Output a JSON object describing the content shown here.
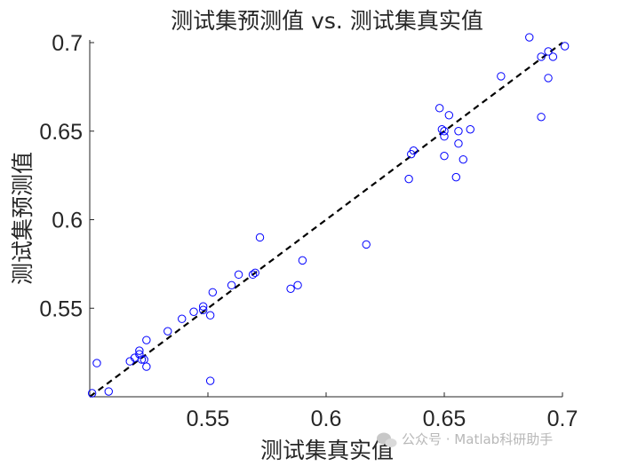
{
  "chart_data": {
    "type": "scatter",
    "title": "测试集预测值 vs. 测试集真实值",
    "xlabel": "测试集真实值",
    "ylabel": "测试集预测值",
    "xlim": [
      0.5,
      0.7
    ],
    "ylim": [
      0.5,
      0.7
    ],
    "xticks": [
      "0.55",
      "0.6",
      "0.65",
      "0.7"
    ],
    "yticks": [
      "0.55",
      "0.6",
      "0.65",
      "0.7"
    ],
    "xtick_values": [
      0.55,
      0.6,
      0.65,
      0.7
    ],
    "ytick_values": [
      0.55,
      0.6,
      0.65,
      0.7
    ],
    "grid": false,
    "reference_line": {
      "style": "dashed",
      "color": "#000000",
      "from": [
        0.5,
        0.5
      ],
      "to": [
        0.7,
        0.7
      ]
    },
    "marker": {
      "shape": "circle",
      "filled": false,
      "color": "#0000ff"
    },
    "points": [
      [
        0.501,
        0.502
      ],
      [
        0.503,
        0.519
      ],
      [
        0.508,
        0.503
      ],
      [
        0.517,
        0.52
      ],
      [
        0.519,
        0.522
      ],
      [
        0.521,
        0.526
      ],
      [
        0.521,
        0.524
      ],
      [
        0.522,
        0.521
      ],
      [
        0.523,
        0.521
      ],
      [
        0.524,
        0.517
      ],
      [
        0.524,
        0.532
      ],
      [
        0.533,
        0.537
      ],
      [
        0.539,
        0.544
      ],
      [
        0.544,
        0.548
      ],
      [
        0.548,
        0.549
      ],
      [
        0.548,
        0.551
      ],
      [
        0.551,
        0.546
      ],
      [
        0.552,
        0.559
      ],
      [
        0.551,
        0.509
      ],
      [
        0.56,
        0.563
      ],
      [
        0.563,
        0.569
      ],
      [
        0.569,
        0.569
      ],
      [
        0.57,
        0.57
      ],
      [
        0.572,
        0.59
      ],
      [
        0.585,
        0.561
      ],
      [
        0.588,
        0.563
      ],
      [
        0.59,
        0.577
      ],
      [
        0.617,
        0.586
      ],
      [
        0.635,
        0.623
      ],
      [
        0.636,
        0.637
      ],
      [
        0.637,
        0.639
      ],
      [
        0.648,
        0.663
      ],
      [
        0.649,
        0.651
      ],
      [
        0.65,
        0.65
      ],
      [
        0.65,
        0.647
      ],
      [
        0.65,
        0.636
      ],
      [
        0.652,
        0.659
      ],
      [
        0.655,
        0.624
      ],
      [
        0.656,
        0.65
      ],
      [
        0.656,
        0.643
      ],
      [
        0.658,
        0.634
      ],
      [
        0.661,
        0.651
      ],
      [
        0.674,
        0.681
      ],
      [
        0.686,
        0.703
      ],
      [
        0.691,
        0.692
      ],
      [
        0.691,
        0.658
      ],
      [
        0.694,
        0.695
      ],
      [
        0.694,
        0.68
      ],
      [
        0.696,
        0.692
      ],
      [
        0.701,
        0.698
      ]
    ]
  },
  "watermark": {
    "icon": "wechat-icon",
    "text": "公众号 · Matlab科研助手"
  }
}
